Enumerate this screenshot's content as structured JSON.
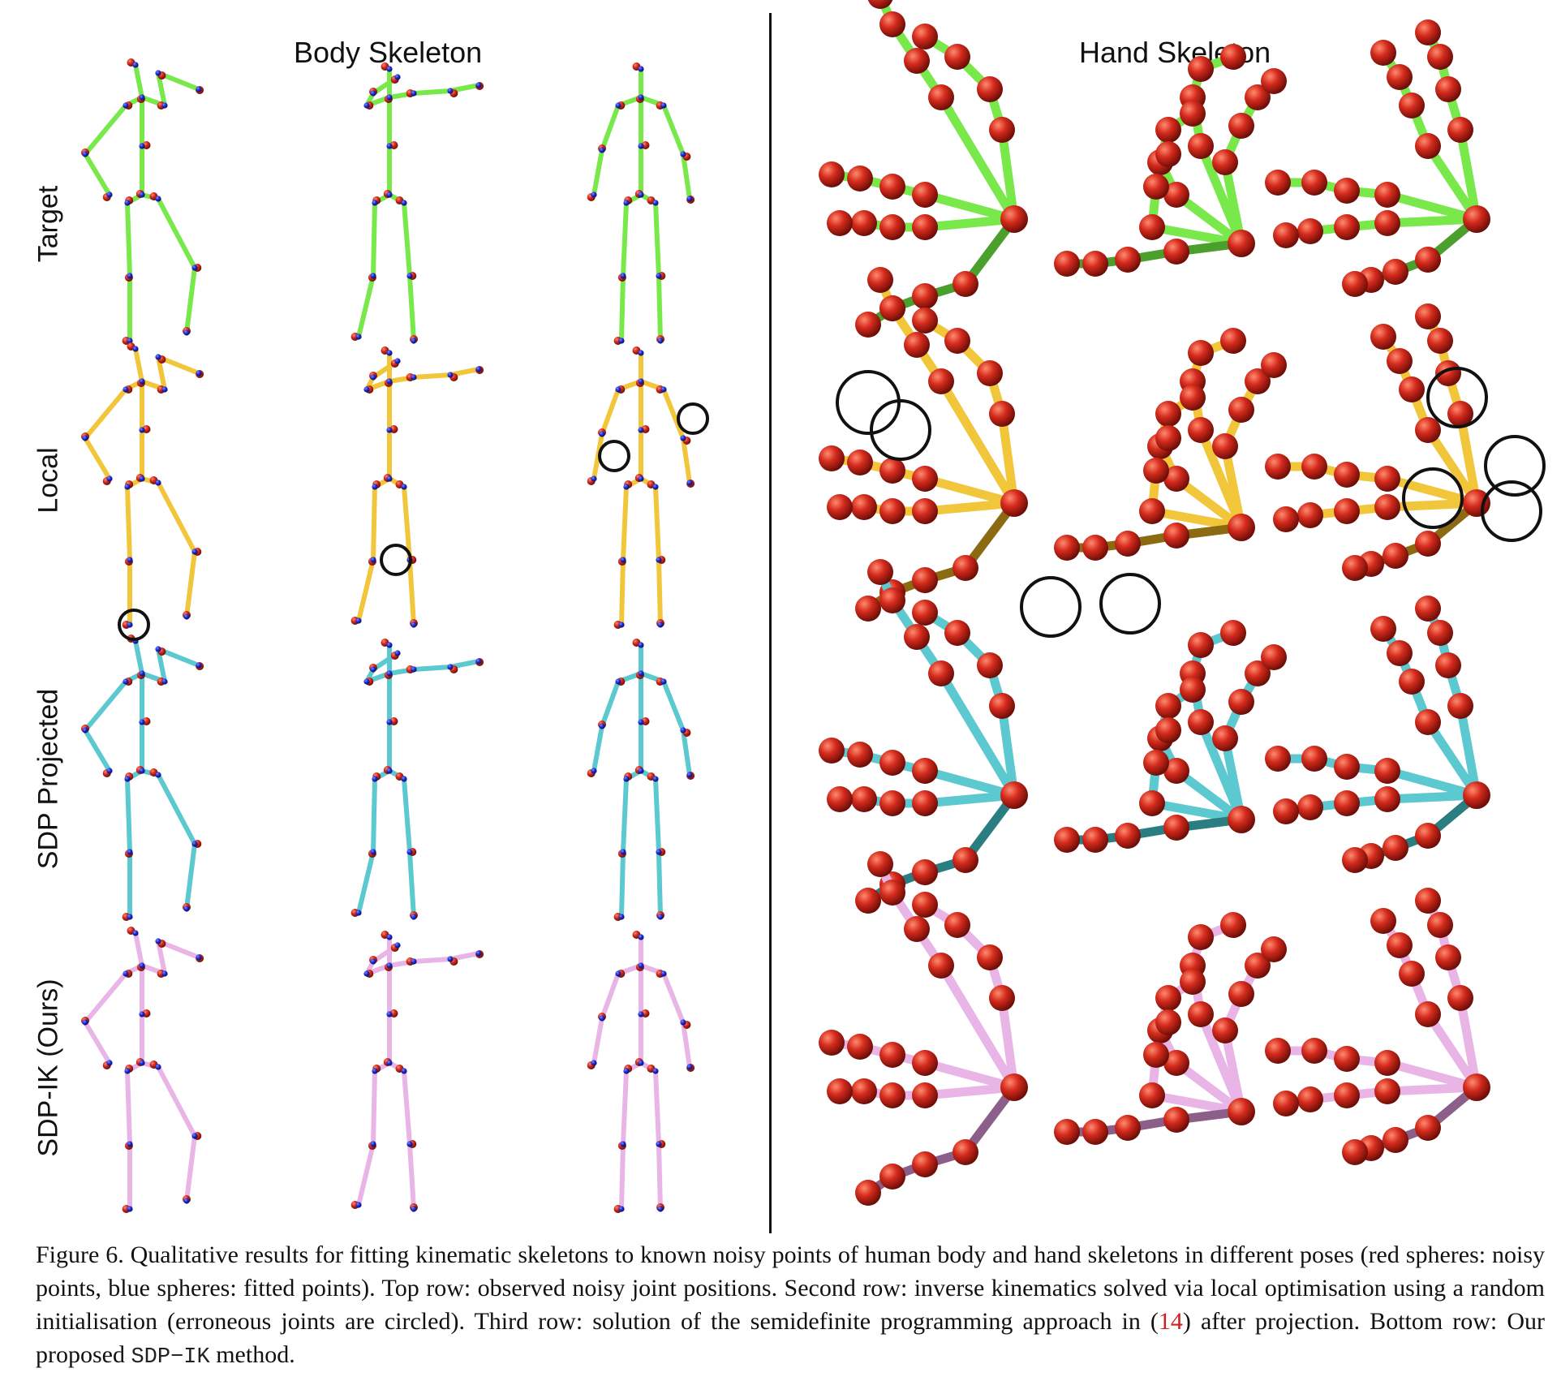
{
  "titles": {
    "body": "Body Skeleton",
    "hand": "Hand Skeleton"
  },
  "rows": [
    {
      "label": "Target",
      "color": "#78e84a",
      "shade": "#4b9f2c"
    },
    {
      "label": "Local",
      "color": "#f2c63a",
      "shade": "#8c6a12"
    },
    {
      "label": "SDP Projected",
      "color": "#5cc8cf",
      "shade": "#2a7d80"
    },
    {
      "label": "SDP-IK (Ours)",
      "color": "#e8b5e6",
      "shade": "#8c5f8a"
    }
  ],
  "colors": {
    "noisy_point": "#cc2418",
    "fitted_point": "#1f2bd1",
    "circle": "#111111"
  },
  "caption": {
    "part1": "Figure 6. Qualitative results for fitting kinematic skeletons to known noisy points of human body and hand skeletons in different poses (red spheres: noisy points, blue spheres: fitted points). Top row: observed noisy joint positions. Second row: inverse kinematics solved via local optimisation using a random initialisation (erroneous joints are circled). Third row: solution of the semidefinite programming approach in (",
    "ref": "14",
    "part2": ") after projection. Bottom row: Our proposed ",
    "method": "SDP−IK",
    "part3": " method."
  }
}
